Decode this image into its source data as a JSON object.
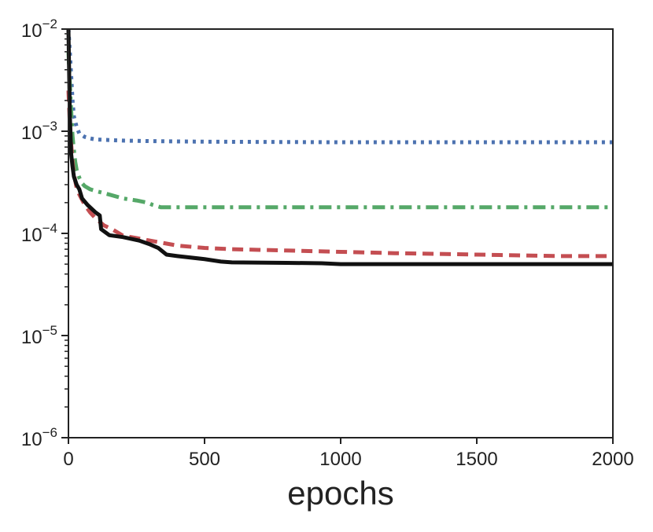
{
  "chart_data": {
    "type": "line",
    "title": "",
    "xlabel": "epochs",
    "ylabel": "",
    "xlim": [
      0,
      2000
    ],
    "ylim": [
      1e-06,
      0.01
    ],
    "yscale": "log",
    "grid": false,
    "legend": "none",
    "x_ticks": [
      {
        "value": 0,
        "label": "0"
      },
      {
        "value": 500,
        "label": "500"
      },
      {
        "value": 1000,
        "label": "1000"
      },
      {
        "value": 1500,
        "label": "1500"
      },
      {
        "value": 2000,
        "label": "2000"
      }
    ],
    "y_ticks": [
      {
        "value": 1e-06,
        "base": "10",
        "exp": "−6"
      },
      {
        "value": 1e-05,
        "base": "10",
        "exp": "−5"
      },
      {
        "value": 0.0001,
        "base": "10",
        "exp": "−4"
      },
      {
        "value": 0.001,
        "base": "10",
        "exp": "−3"
      },
      {
        "value": 0.01,
        "base": "10",
        "exp": "−2"
      }
    ],
    "series": [
      {
        "color": "#4c72b0",
        "style": "dotted",
        "x": [
          0,
          5,
          10,
          15,
          20,
          30,
          40,
          60,
          80,
          100,
          150,
          200,
          300,
          500,
          1000,
          1500,
          2000
        ],
        "y": [
          0.01,
          0.006,
          0.0035,
          0.002,
          0.0014,
          0.0011,
          0.00095,
          0.00088,
          0.00085,
          0.00083,
          0.00082,
          0.00081,
          0.0008,
          0.00079,
          0.00078,
          0.00078,
          0.00078
        ]
      },
      {
        "color": "#55a868",
        "style": "dashdot",
        "x": [
          0,
          5,
          10,
          15,
          20,
          25,
          30,
          40,
          50,
          60,
          80,
          100,
          150,
          200,
          250,
          290,
          310,
          340,
          500,
          1000,
          1500,
          2000
        ],
        "y": [
          0.006,
          0.003,
          0.0016,
          0.0009,
          0.00065,
          0.0005,
          0.00042,
          0.00035,
          0.00031,
          0.00029,
          0.00027,
          0.00026,
          0.00024,
          0.00022,
          0.00021,
          0.0002,
          0.00019,
          0.00018,
          0.00018,
          0.00018,
          0.00018,
          0.00018
        ]
      },
      {
        "color": "#c44e52",
        "style": "dashed",
        "x": [
          0,
          5,
          10,
          15,
          20,
          30,
          40,
          60,
          80,
          100,
          130,
          160,
          200,
          250,
          300,
          400,
          500,
          600,
          700,
          800,
          1000,
          1200,
          1500,
          1800,
          2000
        ],
        "y": [
          0.0025,
          0.0012,
          0.00075,
          0.0005,
          0.00038,
          0.00028,
          0.00024,
          0.00019,
          0.00016,
          0.00014,
          0.00012,
          0.00011,
          9.5e-05,
          9e-05,
          8.5e-05,
          7.6e-05,
          7.2e-05,
          7e-05,
          6.9e-05,
          6.8e-05,
          6.6e-05,
          6.4e-05,
          6.2e-05,
          6e-05,
          6e-05
        ]
      },
      {
        "color": "#111111",
        "style": "solid",
        "x": [
          0,
          5,
          10,
          15,
          20,
          30,
          40,
          50,
          70,
          100,
          115,
          120,
          150,
          200,
          260,
          300,
          330,
          360,
          400,
          500,
          560,
          600,
          800,
          930,
          1000,
          1500,
          2000
        ],
        "y": [
          0.01,
          0.0015,
          0.0006,
          0.00045,
          0.00036,
          0.0003,
          0.00027,
          0.00022,
          0.00019,
          0.00016,
          0.00015,
          0.00011,
          9.6e-05,
          9.2e-05,
          8.5e-05,
          7.8e-05,
          7.2e-05,
          6.2e-05,
          6e-05,
          5.6e-05,
          5.3e-05,
          5.2e-05,
          5.15e-05,
          5.1e-05,
          5e-05,
          5e-05,
          5e-05
        ]
      }
    ]
  }
}
